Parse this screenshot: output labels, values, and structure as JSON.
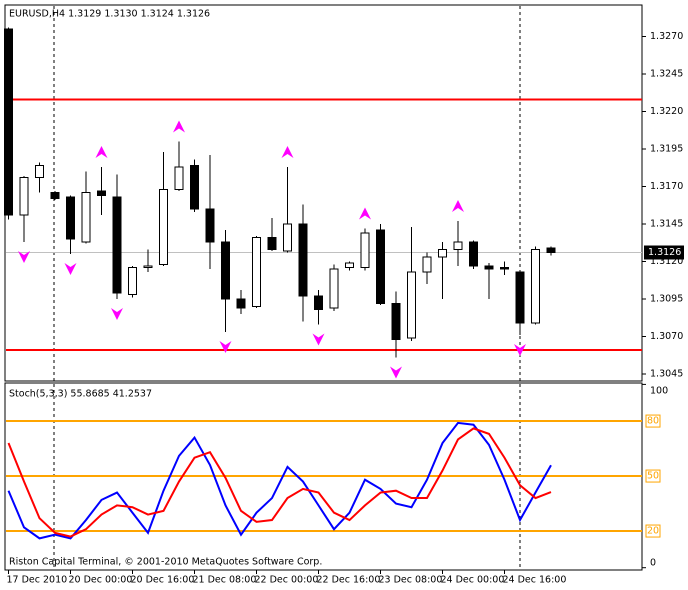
{
  "chart_data": [
    {
      "type": "candlestick",
      "title": "EURUSD,H4  1.3129 1.3130 1.3124 1.3126",
      "categories": [
        "17 Dec 2010",
        null,
        null,
        null,
        "20 Dec 00:00",
        null,
        null,
        null,
        "20 Dec 16:00",
        null,
        null,
        null,
        "21 Dec 08:00",
        null,
        null,
        null,
        "22 Dec 00:00",
        null,
        null,
        null,
        "22 Dec 16:00",
        null,
        null,
        null,
        "23 Dec 08:00",
        null,
        null,
        null,
        "24 Dec 00:00",
        null,
        null,
        null,
        "24 Dec 16:00",
        null,
        null,
        null
      ],
      "open": [
        1.3275,
        1.3151,
        1.3176,
        1.3166,
        1.3163,
        1.3133,
        1.3167,
        1.3163,
        1.3098,
        1.3116,
        1.3118,
        1.3168,
        1.3184,
        1.3155,
        1.3133,
        1.3095,
        1.309,
        1.3136,
        1.3127,
        1.3145,
        1.3097,
        1.3089,
        1.3116,
        1.3116,
        1.3141,
        1.3092,
        1.3069,
        1.3113,
        1.3123,
        1.3128,
        1.3133,
        1.3117,
        1.3116,
        1.3113,
        1.3079,
        1.3129
      ],
      "high": [
        1.3276,
        1.3177,
        1.3186,
        1.3167,
        1.3164,
        1.318,
        1.3183,
        1.3178,
        1.3117,
        1.3128,
        1.3193,
        1.32,
        1.3188,
        1.3191,
        1.3141,
        1.3101,
        1.3137,
        1.3149,
        1.3183,
        1.3158,
        1.3101,
        1.3118,
        1.312,
        1.3142,
        1.3145,
        1.31,
        1.3143,
        1.3126,
        1.3133,
        1.3147,
        1.3134,
        1.3119,
        1.312,
        1.3114,
        1.313,
        1.313
      ],
      "low": [
        1.3148,
        1.3133,
        1.3166,
        1.3161,
        1.3125,
        1.3132,
        1.3151,
        1.3095,
        1.3096,
        1.3113,
        1.3117,
        1.3167,
        1.3153,
        1.3115,
        1.3073,
        1.3085,
        1.3089,
        1.3127,
        1.3126,
        1.308,
        1.3078,
        1.3087,
        1.3114,
        1.3114,
        1.3091,
        1.3056,
        1.3067,
        1.3105,
        1.3095,
        1.3117,
        1.3115,
        1.3095,
        1.3111,
        1.3071,
        1.3078,
        1.3124
      ],
      "close": [
        1.3151,
        1.3176,
        1.3184,
        1.3162,
        1.3135,
        1.3166,
        1.3164,
        1.3099,
        1.3116,
        1.3117,
        1.3168,
        1.3183,
        1.3155,
        1.3133,
        1.3095,
        1.3089,
        1.3136,
        1.3128,
        1.3145,
        1.3097,
        1.3088,
        1.3115,
        1.3119,
        1.3139,
        1.3092,
        1.3068,
        1.3113,
        1.3123,
        1.3128,
        1.3133,
        1.3117,
        1.3115,
        1.3115,
        1.3079,
        1.3128,
        1.3126
      ],
      "fractals_up": [
        6,
        11,
        18,
        23,
        29
      ],
      "fractals_down": [
        1,
        4,
        7,
        14,
        20,
        25,
        33
      ],
      "fractal_color": "#ff00ff",
      "hlines": [
        {
          "value": 1.3228,
          "color": "#ff0000"
        },
        {
          "value": 1.3061,
          "color": "#ff0000"
        }
      ],
      "current_price": 1.3126,
      "ylim": [
        1.3041,
        1.3289
      ],
      "yticks": [
        1.3045,
        {
          "value": 1.307,
          "label": "1.3070"
        },
        1.3095,
        {
          "value": 1.312,
          "label": "1.3120"
        },
        1.3145,
        {
          "value": 1.317,
          "label": "1.3170"
        },
        1.3195,
        {
          "value": 1.322,
          "label": "1.3220"
        },
        1.3245,
        {
          "value": 1.327,
          "label": "1.3270"
        }
      ]
    },
    {
      "type": "line",
      "title": "Stoch(5,3,3) 55.8685 41.2537",
      "annotation": "Riston Capital Terminal, © 2001-2010 MetaQuotes Software Corp.",
      "series": [
        {
          "color": "#0000ff",
          "values": [
            42,
            22,
            16,
            18,
            16,
            26,
            37,
            41,
            30,
            19,
            42,
            61,
            71,
            56,
            34,
            18,
            30,
            38,
            55,
            47,
            34,
            21,
            30,
            48,
            43,
            35,
            33,
            48,
            68,
            79,
            78,
            67,
            48,
            26,
            41,
            55.8685
          ]
        },
        {
          "color": "#ff0000",
          "values": [
            68,
            47,
            27,
            19,
            17,
            21,
            29,
            34,
            33,
            29,
            31,
            47,
            60,
            63,
            49,
            31,
            25,
            26,
            38,
            43,
            41,
            30,
            26,
            34,
            41,
            42,
            38,
            38,
            53,
            70,
            76,
            73,
            60,
            45,
            38,
            41.2537
          ]
        }
      ],
      "levels": [
        20,
        50,
        80
      ],
      "level_color": "#ffa500",
      "ylim": [
        0,
        100
      ],
      "yticks": [
        0,
        100
      ]
    }
  ]
}
